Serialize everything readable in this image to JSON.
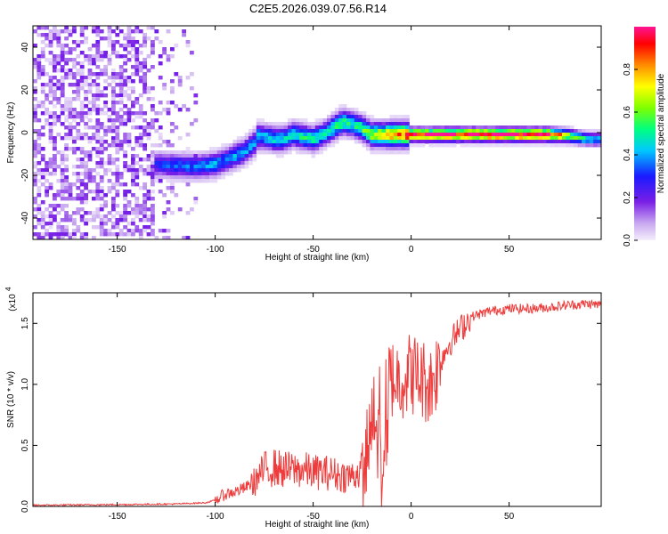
{
  "title": "C2E5.2026.039.07.56.R14",
  "chart_data": [
    {
      "type": "heatmap",
      "xlabel": "Height of straight line (km)",
      "ylabel": "Frequency (Hz)",
      "xlim": [
        -193,
        97
      ],
      "ylim": [
        -50,
        50
      ],
      "xticks": [
        -150,
        -100,
        -50,
        0,
        50
      ],
      "yticks": [
        -40,
        -20,
        0,
        20,
        40
      ],
      "colorbar": {
        "label": "Normalized spectral amplitude",
        "range": [
          0,
          1
        ],
        "ticks": [
          "0.0",
          "0.2",
          "0.4",
          "0.6",
          "0.8"
        ],
        "tick_values": [
          0,
          0.2,
          0.4,
          0.6,
          0.8
        ]
      },
      "ridge": {
        "x": [
          -130,
          -120,
          -110,
          -100,
          -95,
          -90,
          -85,
          -80,
          -78,
          -75,
          -70,
          -65,
          -60,
          -55,
          -50,
          -45,
          -40,
          -35,
          -30,
          -25,
          -20,
          -15,
          -10,
          0,
          10,
          20,
          30,
          40,
          50,
          60,
          70,
          80,
          90,
          97
        ],
        "frequency": [
          -15,
          -15.5,
          -16,
          -15,
          -13,
          -11,
          -9,
          -5,
          -2,
          -2,
          -3,
          -3,
          -1,
          -2,
          -3,
          -1,
          2,
          5,
          4,
          2,
          -1,
          -1,
          -1,
          -1,
          -1,
          -1,
          -1,
          -1,
          -1,
          -1,
          -1,
          -1.5,
          -3,
          -3
        ],
        "amplitude": [
          0.3,
          0.35,
          0.35,
          0.4,
          0.35,
          0.4,
          0.4,
          0.4,
          0.45,
          0.4,
          0.45,
          0.45,
          0.45,
          0.5,
          0.5,
          0.45,
          0.5,
          0.55,
          0.5,
          0.55,
          0.65,
          0.7,
          0.8,
          0.9,
          0.95,
          0.97,
          1.0,
          1.0,
          1.0,
          1.0,
          0.97,
          0.7,
          0.45,
          0.4
        ]
      },
      "noise": {
        "x_range": [
          -193,
          -110
        ],
        "amplitude_range": [
          0.02,
          0.1
        ]
      }
    },
    {
      "type": "line",
      "xlabel": "Height of straight line (km)",
      "ylabel": "SNR (10 * v/v)",
      "scale_label": "(x10",
      "scale_exponent": "4",
      "color": "#ee3b3b",
      "xlim": [
        -193,
        97
      ],
      "ylim": [
        0,
        1.75
      ],
      "xticks": [
        -150,
        -100,
        -50,
        0,
        50
      ],
      "yticks": [
        0.0,
        0.5,
        1.0,
        1.5
      ],
      "ytick_labels": [
        "0.0",
        "0.5",
        "1.0",
        "1.5"
      ],
      "series": [
        {
          "name": "SNR",
          "x": [
            -193,
            -150,
            -120,
            -105,
            -100,
            -95,
            -90,
            -85,
            -80,
            -75,
            -70,
            -65,
            -60,
            -55,
            -50,
            -45,
            -40,
            -35,
            -30,
            -25,
            -22,
            -20,
            -18,
            -16,
            -15,
            -13,
            -10,
            -5,
            0,
            5,
            10,
            15,
            20,
            25,
            30,
            40,
            50,
            60,
            70,
            80,
            90,
            97
          ],
          "y": [
            0.01,
            0.015,
            0.02,
            0.03,
            0.05,
            0.1,
            0.12,
            0.15,
            0.2,
            0.3,
            0.32,
            0.3,
            0.3,
            0.3,
            0.28,
            0.28,
            0.27,
            0.25,
            0.25,
            0.3,
            0.5,
            0.75,
            0.9,
            0.8,
            0.1,
            1.05,
            1.05,
            1.05,
            1.1,
            1.05,
            1.0,
            1.2,
            1.35,
            1.45,
            1.55,
            1.6,
            1.62,
            1.62,
            1.63,
            1.65,
            1.66,
            1.65
          ]
        }
      ]
    }
  ]
}
